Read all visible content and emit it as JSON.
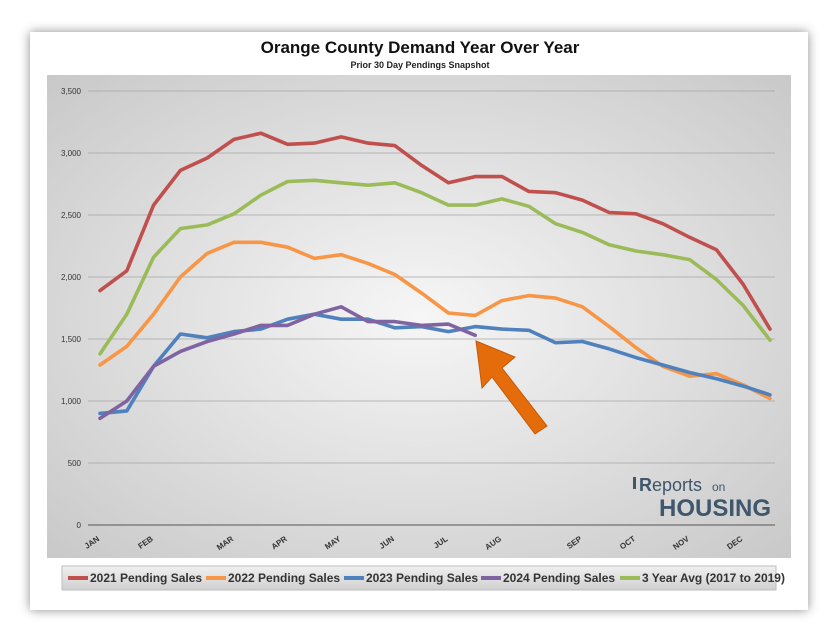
{
  "colors": {
    "s2021": "#c0504d",
    "s2022": "#f79646",
    "s2023": "#4f81bd",
    "s2024": "#8064a2",
    "avg": "#9bbb59",
    "arrow": "#e46c0a",
    "logo": "#3f566d"
  },
  "logo": {
    "text_a": "eports",
    "text_b": "on",
    "text_c": "HOUSING"
  },
  "chart_data": {
    "type": "line",
    "title": "Orange County Demand Year Over Year",
    "subtitle": "Prior 30 Day Pendings Snapshot",
    "xlabel": "",
    "ylabel": "",
    "ylim": [
      0,
      3500
    ],
    "grid": true,
    "legend_position": "bottom",
    "y_ticks": [
      "0",
      "500",
      "1,000",
      "1,500",
      "2,000",
      "2,500",
      "3,000",
      "3,500"
    ],
    "x_ticks": [
      {
        "label": "JAN",
        "index": 0
      },
      {
        "label": "FEB",
        "index": 2
      },
      {
        "label": "MAR",
        "index": 5
      },
      {
        "label": "APR",
        "index": 7
      },
      {
        "label": "MAY",
        "index": 9
      },
      {
        "label": "JUN",
        "index": 11
      },
      {
        "label": "JUL",
        "index": 13
      },
      {
        "label": "AUG",
        "index": 15
      },
      {
        "label": "SEP",
        "index": 18
      },
      {
        "label": "OCT",
        "index": 20
      },
      {
        "label": "NOV",
        "index": 22
      },
      {
        "label": "DEC",
        "index": 24
      }
    ],
    "series": [
      {
        "name": "2021 Pending Sales",
        "color_key": "s2021",
        "values": [
          1890,
          2050,
          2580,
          2860,
          2960,
          3110,
          3160,
          3070,
          3080,
          3130,
          3080,
          3060,
          2900,
          2760,
          2810,
          2810,
          2690,
          2680,
          2620,
          2520,
          2510,
          2430,
          2320,
          2220,
          1940,
          1580
        ]
      },
      {
        "name": "2022 Pending Sales",
        "color_key": "s2022",
        "values": [
          1290,
          1440,
          1700,
          2000,
          2190,
          2280,
          2280,
          2240,
          2150,
          2180,
          2110,
          2020,
          1870,
          1710,
          1690,
          1810,
          1850,
          1830,
          1760,
          1600,
          1430,
          1280,
          1200,
          1220,
          1130,
          1020
        ]
      },
      {
        "name": "2023 Pending Sales",
        "color_key": "s2023",
        "values": [
          900,
          920,
          1280,
          1540,
          1510,
          1560,
          1580,
          1660,
          1700,
          1660,
          1660,
          1590,
          1600,
          1560,
          1600,
          1580,
          1570,
          1470,
          1480,
          1420,
          1350,
          1290,
          1230,
          1180,
          1120,
          1050
        ]
      },
      {
        "name": "2024 Pending Sales",
        "color_key": "s2024",
        "values": [
          860,
          1000,
          1280,
          1400,
          1480,
          1540,
          1610,
          1610,
          1700,
          1760,
          1640,
          1640,
          1610,
          1620,
          1530
        ]
      },
      {
        "name": "3 Year Avg (2017 to 2019)",
        "color_key": "avg",
        "values": [
          1380,
          1700,
          2160,
          2390,
          2420,
          2510,
          2660,
          2770,
          2780,
          2760,
          2740,
          2760,
          2680,
          2580,
          2580,
          2630,
          2570,
          2430,
          2360,
          2260,
          2210,
          2180,
          2140,
          1980,
          1770,
          1490
        ]
      }
    ]
  }
}
